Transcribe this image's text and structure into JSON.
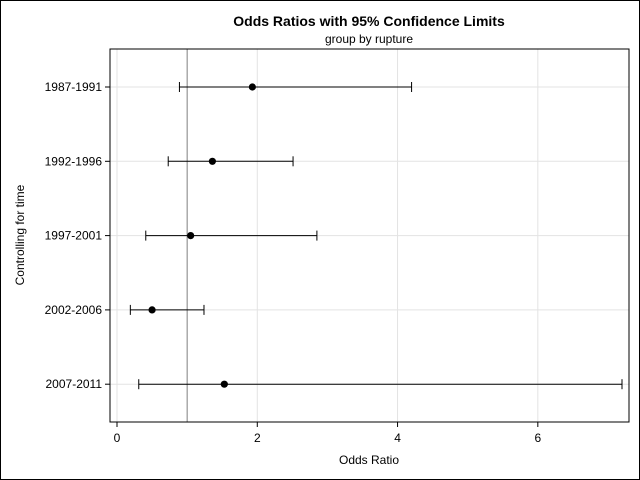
{
  "chart_data": {
    "type": "scatter",
    "subtype": "forest-plot",
    "title": "Odds Ratios with 95% Confidence Limits",
    "subtitle": "group by rupture",
    "xlabel": "Odds Ratio",
    "ylabel": "Controlling for time",
    "xlim": [
      -0.1,
      7.3
    ],
    "xticks": [
      "0",
      "2",
      "4",
      "6"
    ],
    "reference_line": 1,
    "grid": true,
    "categories": [
      "1987-1991",
      "1992-1996",
      "1997-2001",
      "2002-2006",
      "2007-2011"
    ],
    "estimates": [
      1.93,
      1.36,
      1.05,
      0.5,
      1.53
    ],
    "lower": [
      0.89,
      0.73,
      0.41,
      0.19,
      0.31
    ],
    "upper": [
      4.2,
      2.51,
      2.85,
      1.24,
      7.2
    ]
  }
}
